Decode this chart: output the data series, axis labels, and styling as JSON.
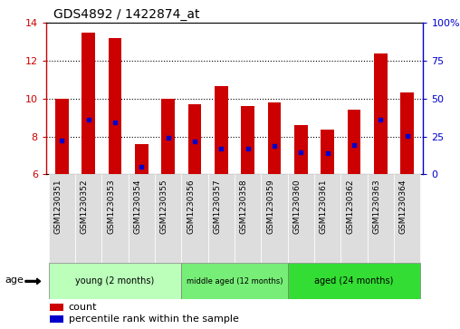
{
  "title": "GDS4892 / 1422874_at",
  "samples": [
    "GSM1230351",
    "GSM1230352",
    "GSM1230353",
    "GSM1230354",
    "GSM1230355",
    "GSM1230356",
    "GSM1230357",
    "GSM1230358",
    "GSM1230359",
    "GSM1230360",
    "GSM1230361",
    "GSM1230362",
    "GSM1230363",
    "GSM1230364"
  ],
  "count_values": [
    10.0,
    13.5,
    13.2,
    7.6,
    10.0,
    9.7,
    10.65,
    9.6,
    9.8,
    8.6,
    8.35,
    9.4,
    12.4,
    10.35
  ],
  "percentile_values": [
    7.8,
    8.9,
    8.75,
    6.4,
    7.95,
    7.75,
    7.35,
    7.35,
    7.5,
    7.15,
    7.1,
    7.55,
    8.9,
    8.05
  ],
  "ymin": 6,
  "ymax": 14,
  "yticks": [
    6,
    8,
    10,
    12,
    14
  ],
  "y2min": 0,
  "y2max": 100,
  "y2ticks": [
    0,
    25,
    50,
    75,
    100
  ],
  "y2ticklabels": [
    "0",
    "25",
    "50",
    "75",
    "100%"
  ],
  "bar_color": "#cc0000",
  "percentile_color": "#0000cc",
  "groups": [
    {
      "label": "young (2 months)",
      "start": 0,
      "end": 4,
      "color": "#bbffbb"
    },
    {
      "label": "middle aged (12 months)",
      "start": 5,
      "end": 8,
      "color": "#77ee77"
    },
    {
      "label": "aged (24 months)",
      "start": 9,
      "end": 13,
      "color": "#33dd33"
    }
  ],
  "tick_label_bg": "#dddddd",
  "left_axis_color": "#cc0000",
  "right_axis_color": "#0000cc",
  "age_label": "age",
  "legend_count": "count",
  "legend_percentile": "percentile rank within the sample",
  "background_color": "#ffffff",
  "plot_bg_color": "#ffffff",
  "grid_lines": [
    8,
    10,
    12
  ],
  "bar_width": 0.5
}
